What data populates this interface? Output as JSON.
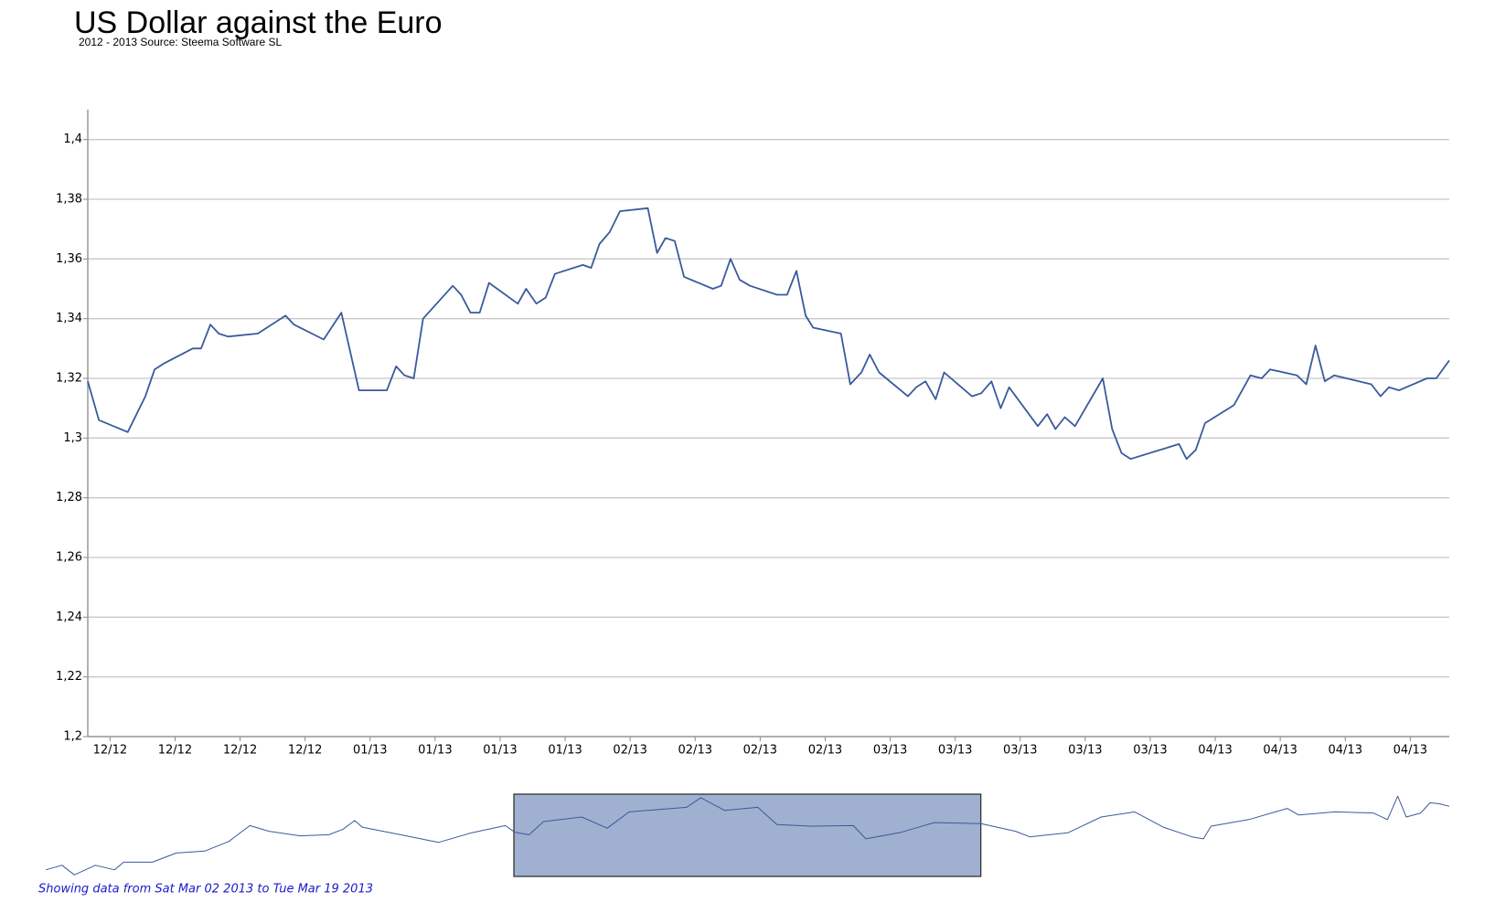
{
  "chart_data": [
    {
      "type": "line",
      "title": "US Dollar against the Euro",
      "subtitle": "2012 - 2013 Source: Steema Software SL",
      "xlim": [
        -2.4,
        144.2
      ],
      "ylim": [
        1.2,
        1.41
      ],
      "xticks": [
        {
          "value": 0,
          "label": "12/12"
        },
        {
          "value": 7,
          "label": "12/12"
        },
        {
          "value": 14,
          "label": "12/12"
        },
        {
          "value": 21,
          "label": "12/12"
        },
        {
          "value": 28,
          "label": "01/13"
        },
        {
          "value": 35,
          "label": "01/13"
        },
        {
          "value": 42,
          "label": "01/13"
        },
        {
          "value": 49,
          "label": "01/13"
        },
        {
          "value": 56,
          "label": "02/13"
        },
        {
          "value": 63,
          "label": "02/13"
        },
        {
          "value": 70,
          "label": "02/13"
        },
        {
          "value": 77,
          "label": "02/13"
        },
        {
          "value": 84,
          "label": "03/13"
        },
        {
          "value": 91,
          "label": "03/13"
        },
        {
          "value": 98,
          "label": "03/13"
        },
        {
          "value": 105,
          "label": "03/13"
        },
        {
          "value": 112,
          "label": "03/13"
        },
        {
          "value": 119,
          "label": "04/13"
        },
        {
          "value": 126,
          "label": "04/13"
        },
        {
          "value": 133,
          "label": "04/13"
        },
        {
          "value": 140,
          "label": "04/13"
        }
      ],
      "yticks": [
        {
          "value": 1.2,
          "label": "1,2"
        },
        {
          "value": 1.22,
          "label": "1,22"
        },
        {
          "value": 1.24,
          "label": "1,24"
        },
        {
          "value": 1.26,
          "label": "1,26"
        },
        {
          "value": 1.28,
          "label": "1,28"
        },
        {
          "value": 1.3,
          "label": "1,3"
        },
        {
          "value": 1.32,
          "label": "1,32"
        },
        {
          "value": 1.34,
          "label": "1,34"
        },
        {
          "value": 1.36,
          "label": "1,36"
        },
        {
          "value": 1.38,
          "label": "1,38"
        },
        {
          "value": 1.4,
          "label": "1,4"
        }
      ],
      "grid": true,
      "series": [
        {
          "color": "#3a5a9c",
          "x": [
            -2.4,
            -1.2,
            1.9,
            3.8,
            4.8,
            5.8,
            8.9,
            9.8,
            10.8,
            11.7,
            12.7,
            15.9,
            18.9,
            19.8,
            23.0,
            24.9,
            26.8,
            29.8,
            30.8,
            31.7,
            32.7,
            33.7,
            36.9,
            37.8,
            38.8,
            39.8,
            40.8,
            43.9,
            44.8,
            45.9,
            46.9,
            47.9,
            50.9,
            51.8,
            52.7,
            53.8,
            54.9,
            57.9,
            58.9,
            59.8,
            60.8,
            61.8,
            64.9,
            65.8,
            66.8,
            67.8,
            68.9,
            71.8,
            72.9,
            73.9,
            74.9,
            75.7,
            78.7,
            79.7,
            80.9,
            81.8,
            82.8,
            85.9,
            86.8,
            87.8,
            88.9,
            89.8,
            92.8,
            93.8,
            94.9,
            95.9,
            96.8,
            99.9,
            100.9,
            101.8,
            102.8,
            103.9,
            106.9,
            107.9,
            108.9,
            109.9,
            115.1,
            115.9,
            116.9,
            117.9,
            121.0,
            122.8,
            124.0,
            124.9,
            127.8,
            128.8,
            129.8,
            130.8,
            131.8,
            135.8,
            136.8,
            137.7,
            138.8,
            141.8,
            142.8,
            144.2
          ],
          "values": [
            1.319,
            1.306,
            1.302,
            1.314,
            1.323,
            1.325,
            1.33,
            1.33,
            1.338,
            1.335,
            1.334,
            1.335,
            1.341,
            1.338,
            1.333,
            1.342,
            1.316,
            1.316,
            1.324,
            1.321,
            1.32,
            1.34,
            1.351,
            1.348,
            1.342,
            1.342,
            1.352,
            1.345,
            1.35,
            1.345,
            1.347,
            1.355,
            1.358,
            1.357,
            1.365,
            1.369,
            1.376,
            1.377,
            1.362,
            1.367,
            1.366,
            1.354,
            1.35,
            1.351,
            1.36,
            1.353,
            1.351,
            1.348,
            1.348,
            1.356,
            1.341,
            1.337,
            1.335,
            1.318,
            1.322,
            1.328,
            1.322,
            1.314,
            1.317,
            1.319,
            1.313,
            1.322,
            1.314,
            1.315,
            1.319,
            1.31,
            1.317,
            1.304,
            1.308,
            1.303,
            1.307,
            1.304,
            1.32,
            1.303,
            1.295,
            1.293,
            1.298,
            1.293,
            1.296,
            1.305,
            1.311,
            1.321,
            1.32,
            1.323,
            1.321,
            1.318,
            1.331,
            1.319,
            1.321,
            1.318,
            1.314,
            1.317,
            1.316,
            1.32,
            1.32,
            1.326
          ]
        }
      ]
    },
    {
      "type": "navigator",
      "xlim": [
        -149.4,
        291.3
      ],
      "ylim": [
        1.22,
        1.382
      ],
      "range_label": "Showing data from Sat Mar 02 2013 to Tue Mar 19 2013",
      "series": [
        {
          "color": "#3a5a9c",
          "x": [
            -149.4,
            -144.3,
            -140.4,
            -133.8,
            -127.8,
            -124.9,
            -115.9,
            -108.4,
            -99.4,
            -91.9,
            -85.3,
            -79.3,
            -69.5,
            -60.5,
            -56.0,
            -52.4,
            -50.0,
            -38.0,
            -26.1,
            -15.6,
            -5.1,
            -2.1,
            2.4,
            6.9,
            18.9,
            26.9,
            33.8,
            51.8,
            56.3,
            63.8,
            74.2,
            80.2,
            90.7,
            104.2,
            108.1,
            119.2,
            129.6,
            144.3,
            155.1,
            159.6,
            171.6,
            182.0,
            192.5,
            201.5,
            210.5,
            214.1,
            216.5,
            228.4,
            240.4,
            244.0,
            255.4,
            267.4,
            271.9,
            275.1,
            277.8,
            282.3,
            285.3,
            288.3,
            291.3
          ],
          "values": [
            1.233,
            1.242,
            1.223,
            1.242,
            1.233,
            1.248,
            1.248,
            1.266,
            1.27,
            1.289,
            1.32,
            1.309,
            1.3,
            1.302,
            1.313,
            1.33,
            1.317,
            1.302,
            1.287,
            1.306,
            1.32,
            1.307,
            1.302,
            1.328,
            1.337,
            1.315,
            1.347,
            1.356,
            1.375,
            1.35,
            1.356,
            1.322,
            1.319,
            1.32,
            1.294,
            1.307,
            1.326,
            1.324,
            1.309,
            1.298,
            1.306,
            1.337,
            1.347,
            1.317,
            1.298,
            1.294,
            1.319,
            1.332,
            1.354,
            1.341,
            1.347,
            1.345,
            1.332,
            1.378,
            1.337,
            1.345,
            1.365,
            1.363,
            1.358
          ]
        }
      ]
    }
  ]
}
